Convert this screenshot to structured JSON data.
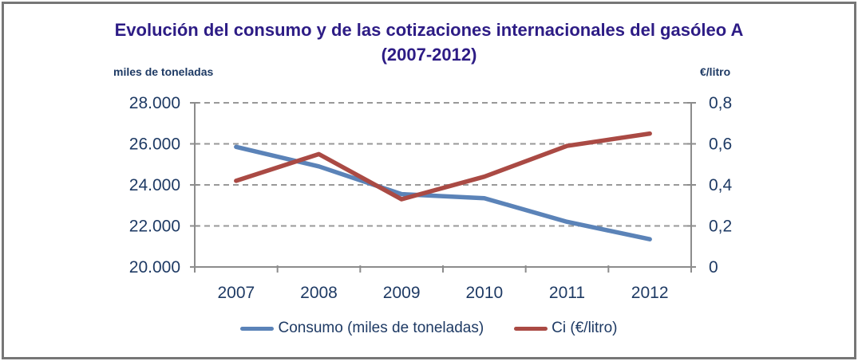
{
  "window": {
    "border_color": "#767676",
    "background": "#ffffff"
  },
  "title": {
    "line1": "Evolución del consumo y de las cotizaciones internacionales del gasóleo A",
    "line2": "(2007-2012)",
    "color": "#2d1c85"
  },
  "chart_data": {
    "type": "line",
    "title": "Evolución del consumo y de las cotizaciones internacionales del gasóleo A (2007-2012)",
    "categories": [
      "2007",
      "2008",
      "2009",
      "2010",
      "2011",
      "2012"
    ],
    "series": [
      {
        "name": "Consumo (miles de toneladas)",
        "axis": "left",
        "color": "#5b83b8",
        "values": [
          25850,
          24900,
          23550,
          23350,
          22200,
          21350
        ]
      },
      {
        "name": "Ci (€/litro)",
        "axis": "right",
        "color": "#aa4a44",
        "values": [
          0.42,
          0.55,
          0.33,
          0.44,
          0.59,
          0.65
        ]
      }
    ],
    "left_axis": {
      "label": "miles de toneladas",
      "min": 20000,
      "max": 28000,
      "step": 2000,
      "tick_labels": [
        "28.000",
        "26.000",
        "24.000",
        "22.000",
        "20.000"
      ]
    },
    "right_axis": {
      "label": "€/litro",
      "min": 0,
      "max": 0.8,
      "step": 0.2,
      "tick_labels": [
        "0,8",
        "0,6",
        "0,4",
        "0,2",
        "0"
      ]
    },
    "grid": "horizontal dashed",
    "grid_color": "#999999",
    "axis_color": "#8c8c8c",
    "tick_text_color": "#1e3a64",
    "legend_position": "bottom"
  },
  "legend": {
    "items": [
      {
        "label": "Consumo (miles de toneladas)",
        "color": "#5b83b8"
      },
      {
        "label": "Ci (€/litro)",
        "color": "#aa4a44"
      }
    ]
  }
}
